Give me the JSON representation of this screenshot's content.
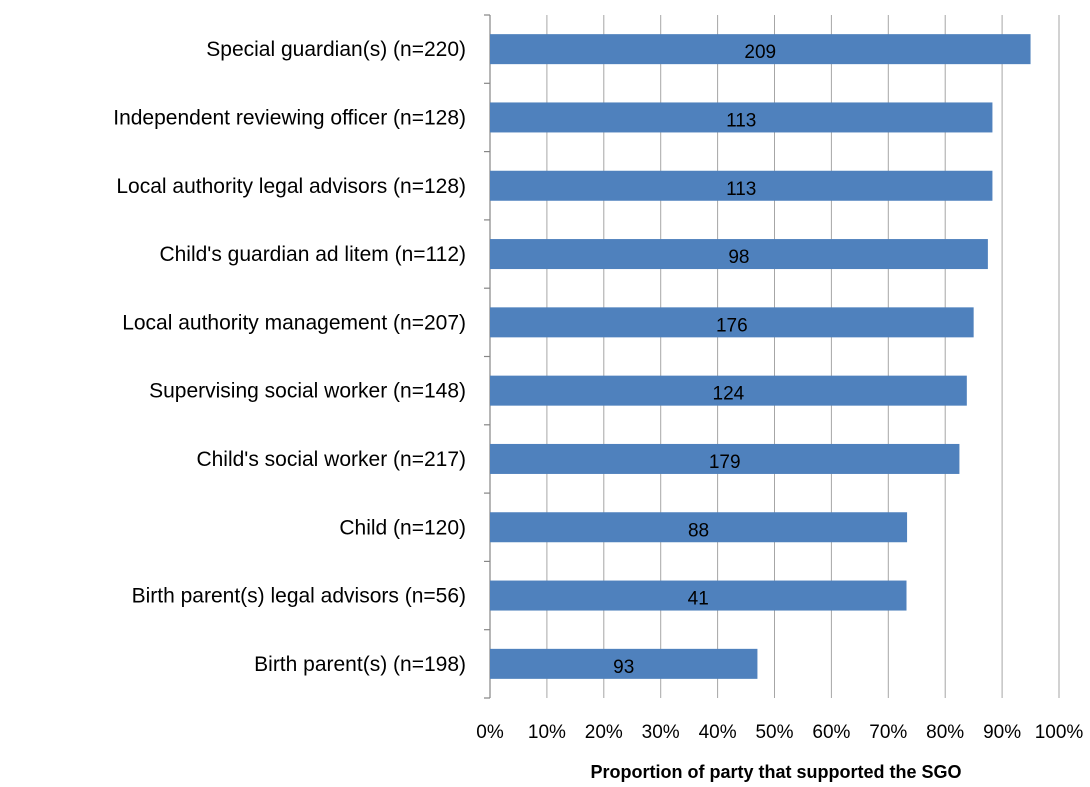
{
  "chart_data": {
    "type": "bar",
    "orientation": "horizontal",
    "title": "",
    "xlabel": "Proportion of party that supported the SGO",
    "ylabel": "",
    "xlim": [
      0,
      100
    ],
    "x_ticks": [
      "0%",
      "10%",
      "20%",
      "30%",
      "40%",
      "50%",
      "60%",
      "70%",
      "80%",
      "90%",
      "100%"
    ],
    "grid": "vertical",
    "legend": "none",
    "bar_color": "#4F81BD",
    "categories": [
      "Special guardian(s) (n=220)",
      "Independent reviewing officer (n=128)",
      "Local authority legal advisors (n=128)",
      "Child's guardian ad litem (n=112)",
      "Local authority management (n=207)",
      "Supervising social worker (n=148)",
      "Child's social worker (n=217)",
      "Child (n=120)",
      "Birth parent(s) legal advisors (n=56)",
      "Birth parent(s) (n=198)"
    ],
    "values": [
      95.0,
      88.3,
      88.3,
      87.5,
      85.0,
      83.8,
      82.5,
      73.3,
      73.2,
      47.0
    ],
    "data_labels": [
      "209",
      "113",
      "113",
      "98",
      "176",
      "124",
      "179",
      "88",
      "41",
      "93"
    ]
  }
}
